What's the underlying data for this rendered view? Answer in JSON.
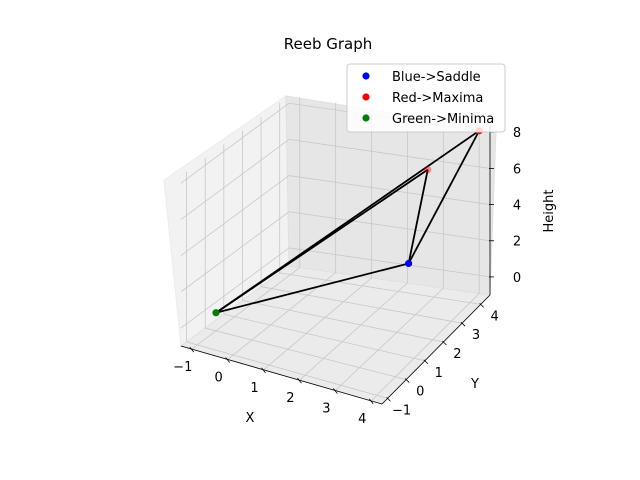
{
  "chart_data": {
    "type": "scatter3d",
    "title": "Reeb Graph",
    "xlabel": "X",
    "ylabel": "Y",
    "zlabel": "Height",
    "xlim": [
      -1.3,
      4.3
    ],
    "ylim": [
      -1.3,
      4.5
    ],
    "zlim": [
      -1.0,
      8.4
    ],
    "xticks": [
      -1,
      0,
      1,
      2,
      3,
      4
    ],
    "yticks": [
      -1,
      0,
      1,
      2,
      3,
      4
    ],
    "zticks": [
      0,
      2,
      4,
      6,
      8
    ],
    "legend_position": "top-right",
    "grid": true,
    "series": [
      {
        "name": "Blue->Saddle",
        "color": "#0000ff",
        "points": [
          [
            3.9,
            0.9,
            4.3
          ]
        ]
      },
      {
        "name": "Red->Maxima",
        "color": "#ff0000",
        "points": [
          [
            3.5,
            2.7,
            7.5
          ],
          [
            4.0,
            4.5,
            8.0
          ]
        ]
      },
      {
        "name": "Green->Minima",
        "color": "#008000",
        "points": [
          [
            -1.0,
            0.0,
            0.0
          ]
        ]
      }
    ],
    "edges": [
      [
        [
          -1.0,
          0.0,
          0.0
        ],
        [
          3.9,
          0.9,
          4.3
        ]
      ],
      [
        [
          -1.0,
          0.0,
          0.0
        ],
        [
          3.5,
          2.7,
          7.5
        ]
      ],
      [
        [
          -1.0,
          0.0,
          0.0
        ],
        [
          4.0,
          4.5,
          8.0
        ]
      ],
      [
        [
          3.9,
          0.9,
          4.3
        ],
        [
          3.5,
          2.7,
          7.5
        ]
      ],
      [
        [
          3.9,
          0.9,
          4.3
        ],
        [
          4.0,
          4.5,
          8.0
        ]
      ]
    ]
  }
}
